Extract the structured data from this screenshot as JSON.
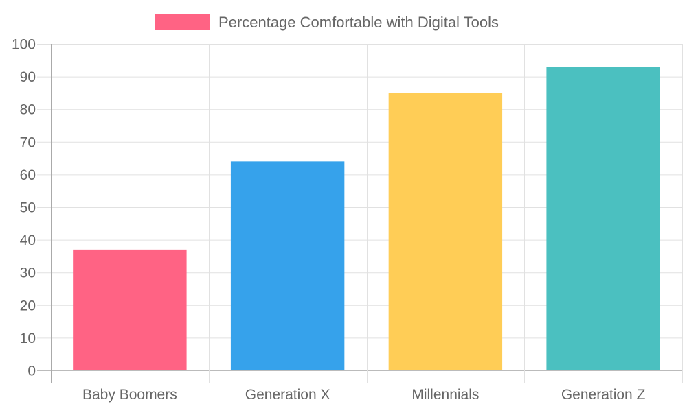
{
  "chart_data": {
    "type": "bar",
    "categories": [
      "Baby Boomers",
      "Generation X",
      "Millennials",
      "Generation Z"
    ],
    "series": [
      {
        "name": "Percentage Comfortable with Digital Tools",
        "values": [
          37,
          64,
          85,
          93
        ],
        "colors": [
          "#ff6384",
          "#36a2eb",
          "#ffcd56",
          "#4bc0c0"
        ]
      }
    ],
    "title": "",
    "xlabel": "",
    "ylabel": "",
    "ylim": [
      0,
      100
    ],
    "yticks": [
      "0",
      "10",
      "20",
      "30",
      "40",
      "50",
      "60",
      "70",
      "80",
      "90",
      "100"
    ],
    "grid": true,
    "legend": "top-center"
  }
}
